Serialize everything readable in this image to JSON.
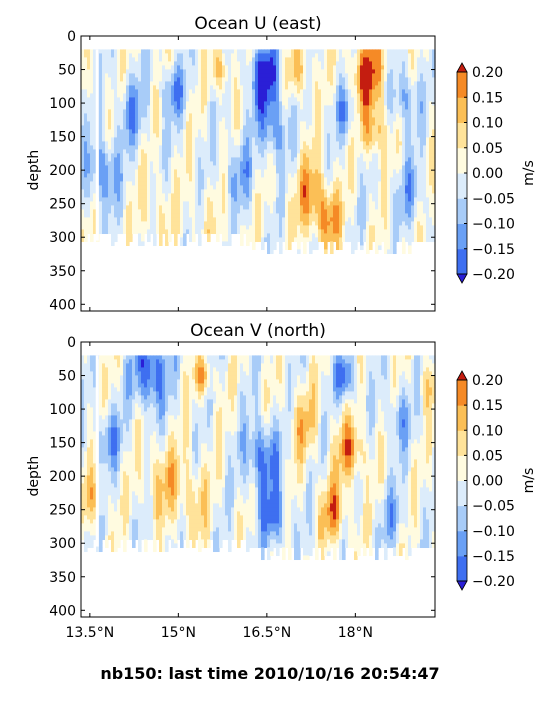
{
  "footer": "nb150: last time 2010/10/16 20:54:47",
  "chart_data": [
    {
      "type": "heatmap",
      "title": "Ocean U (east)",
      "xlabel": "",
      "ylabel": "depth",
      "x_ticks": [
        "13.5°N",
        "15°N",
        "16.5°N",
        "18°N"
      ],
      "x_tick_values": [
        13.5,
        15.0,
        16.5,
        18.0
      ],
      "xlim": [
        13.35,
        19.35
      ],
      "ylim": [
        410,
        0
      ],
      "y_ticks": [
        0,
        50,
        100,
        150,
        200,
        250,
        300,
        350,
        400
      ],
      "data_depth_range": [
        20,
        305
      ],
      "colorbar": {
        "label": "m/s",
        "levels": [
          -0.2,
          -0.15,
          -0.1,
          -0.05,
          0.0,
          0.05,
          0.1,
          0.15,
          0.2
        ],
        "tick_labels": [
          "−0.20",
          "−0.15",
          "−0.10",
          "−0.05",
          "0.00",
          "0.05",
          "0.10",
          "0.15",
          "0.20"
        ],
        "colors": [
          "#2a1fd6",
          "#3e6ff0",
          "#6aa0f5",
          "#a8ccf8",
          "#dcecfb",
          "#fffbe0",
          "#ffe39a",
          "#fbbf56",
          "#f58a26",
          "#e8511a",
          "#c41d10"
        ]
      },
      "features": [
        {
          "lat": 16.45,
          "depth": 60,
          "value": -0.22,
          "size": 1.0
        },
        {
          "lat": 16.6,
          "depth": 140,
          "value": -0.14,
          "size": 0.8
        },
        {
          "lat": 18.2,
          "depth": 55,
          "value": 0.21,
          "size": 1.0
        },
        {
          "lat": 18.3,
          "depth": 140,
          "value": 0.15,
          "size": 0.7
        },
        {
          "lat": 17.2,
          "depth": 230,
          "value": 0.13,
          "size": 1.0
        },
        {
          "lat": 17.5,
          "depth": 270,
          "value": 0.16,
          "size": 0.8
        },
        {
          "lat": 13.7,
          "depth": 200,
          "value": -0.16,
          "size": 0.9
        },
        {
          "lat": 14.2,
          "depth": 110,
          "value": -0.11,
          "size": 0.9
        },
        {
          "lat": 14.9,
          "depth": 80,
          "value": -0.13,
          "size": 0.7
        },
        {
          "lat": 15.7,
          "depth": 50,
          "value": 0.12,
          "size": 0.6
        },
        {
          "lat": 16.0,
          "depth": 200,
          "value": -0.1,
          "size": 0.9
        },
        {
          "lat": 17.0,
          "depth": 50,
          "value": 0.12,
          "size": 0.7
        },
        {
          "lat": 17.8,
          "depth": 110,
          "value": -0.11,
          "size": 0.7
        },
        {
          "lat": 18.8,
          "depth": 90,
          "value": -0.13,
          "size": 0.8
        },
        {
          "lat": 18.9,
          "depth": 230,
          "value": -0.09,
          "size": 0.9
        },
        {
          "lat": 14.6,
          "depth": 260,
          "value": 0.06,
          "size": 1.0
        },
        {
          "lat": 15.4,
          "depth": 270,
          "value": 0.04,
          "size": 0.8
        }
      ]
    },
    {
      "type": "heatmap",
      "title": "Ocean V (north)",
      "xlabel": "",
      "ylabel": "depth",
      "x_ticks": [
        "13.5°N",
        "15°N",
        "16.5°N",
        "18°N"
      ],
      "x_tick_values": [
        13.5,
        15.0,
        16.5,
        18.0
      ],
      "xlim": [
        13.35,
        19.35
      ],
      "ylim": [
        410,
        0
      ],
      "y_ticks": [
        0,
        50,
        100,
        150,
        200,
        250,
        300,
        350,
        400
      ],
      "data_depth_range": [
        20,
        305
      ],
      "colorbar": {
        "label": "m/s",
        "levels": [
          -0.2,
          -0.15,
          -0.1,
          -0.05,
          0.0,
          0.05,
          0.1,
          0.15,
          0.2
        ],
        "tick_labels": [
          "−0.20",
          "−0.15",
          "−0.10",
          "−0.05",
          "0.00",
          "0.05",
          "0.10",
          "0.15",
          "0.20"
        ],
        "colors": [
          "#2a1fd6",
          "#3e6ff0",
          "#6aa0f5",
          "#a8ccf8",
          "#dcecfb",
          "#fffbe0",
          "#ffe39a",
          "#fbbf56",
          "#f58a26",
          "#e8511a",
          "#c41d10"
        ]
      },
      "features": [
        {
          "lat": 14.5,
          "depth": 40,
          "value": -0.22,
          "size": 1.0
        },
        {
          "lat": 16.4,
          "depth": 170,
          "value": -0.18,
          "size": 1.0
        },
        {
          "lat": 16.6,
          "depth": 260,
          "value": -0.16,
          "size": 0.8
        },
        {
          "lat": 15.4,
          "depth": 50,
          "value": 0.16,
          "size": 0.5
        },
        {
          "lat": 17.9,
          "depth": 160,
          "value": 0.17,
          "size": 0.8
        },
        {
          "lat": 17.6,
          "depth": 250,
          "value": 0.15,
          "size": 0.8
        },
        {
          "lat": 17.1,
          "depth": 120,
          "value": 0.1,
          "size": 0.9
        },
        {
          "lat": 17.8,
          "depth": 50,
          "value": -0.18,
          "size": 0.6
        },
        {
          "lat": 13.8,
          "depth": 140,
          "value": -0.12,
          "size": 0.8
        },
        {
          "lat": 13.5,
          "depth": 230,
          "value": 0.1,
          "size": 0.7
        },
        {
          "lat": 14.7,
          "depth": 200,
          "value": 0.1,
          "size": 1.0
        },
        {
          "lat": 15.2,
          "depth": 230,
          "value": 0.09,
          "size": 1.0
        },
        {
          "lat": 18.7,
          "depth": 110,
          "value": -0.1,
          "size": 0.8
        },
        {
          "lat": 18.6,
          "depth": 260,
          "value": -0.08,
          "size": 0.8
        },
        {
          "lat": 19.2,
          "depth": 60,
          "value": 0.08,
          "size": 0.6
        }
      ]
    }
  ]
}
